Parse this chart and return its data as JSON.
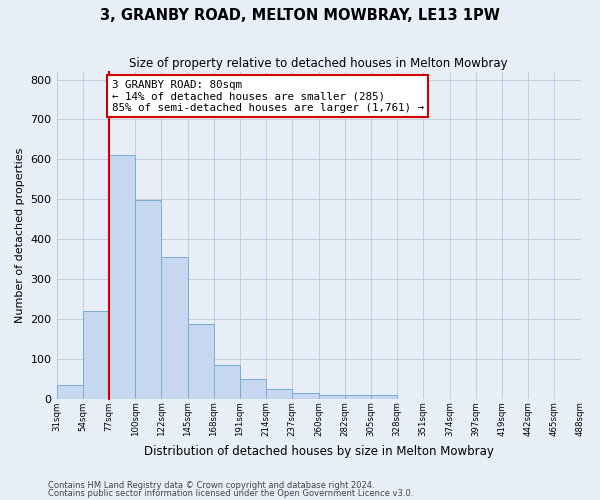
{
  "title": "3, GRANBY ROAD, MELTON MOWBRAY, LE13 1PW",
  "subtitle": "Size of property relative to detached houses in Melton Mowbray",
  "xlabel": "Distribution of detached houses by size in Melton Mowbray",
  "ylabel": "Number of detached properties",
  "bar_values": [
    33,
    220,
    610,
    497,
    355,
    188,
    84,
    50,
    23,
    15,
    10,
    8,
    8,
    0,
    0,
    0,
    0,
    0,
    0,
    0
  ],
  "bin_labels": [
    "31sqm",
    "54sqm",
    "77sqm",
    "100sqm",
    "122sqm",
    "145sqm",
    "168sqm",
    "191sqm",
    "214sqm",
    "237sqm",
    "260sqm",
    "282sqm",
    "305sqm",
    "328sqm",
    "351sqm",
    "374sqm",
    "397sqm",
    "419sqm",
    "442sqm",
    "465sqm",
    "488sqm"
  ],
  "bar_color": "#c5d8f0",
  "bar_edge_color": "#7aadd4",
  "vline_color": "#cc0000",
  "annotation_line1": "3 GRANBY ROAD: 80sqm",
  "annotation_line2": "← 14% of detached houses are smaller (285)",
  "annotation_line3": "85% of semi-detached houses are larger (1,761) →",
  "annotation_box_color": "#ffffff",
  "annotation_box_edge": "#cc0000",
  "ylim": [
    0,
    820
  ],
  "yticks": [
    0,
    100,
    200,
    300,
    400,
    500,
    600,
    700,
    800
  ],
  "footer1": "Contains HM Land Registry data © Crown copyright and database right 2024.",
  "footer2": "Contains public sector information licensed under the Open Government Licence v3.0.",
  "background_color": "#e8eef8",
  "plot_bg_color": "#e8eef8",
  "grid_color": "#c0c8d8",
  "fig_width": 6.0,
  "fig_height": 5.0,
  "num_bars": 20
}
